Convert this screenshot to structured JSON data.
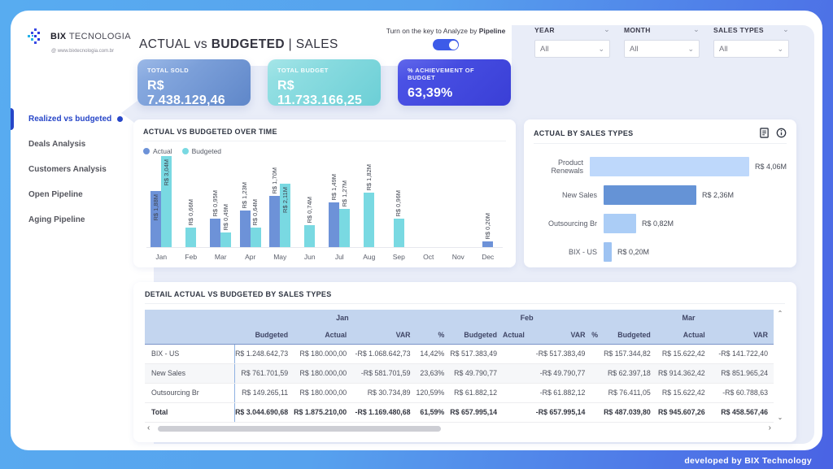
{
  "logo": {
    "brand_bold": "BIX",
    "brand_rest": "TECNOLOGIA",
    "url": "@ www.bixtecnologia.com.br"
  },
  "sidebar": {
    "items": [
      {
        "label": "Realized vs budgeted",
        "active": true
      },
      {
        "label": "Deals Analysis",
        "active": false
      },
      {
        "label": "Customers Analysis",
        "active": false
      },
      {
        "label": "Open Pipeline",
        "active": false
      },
      {
        "label": "Aging Pipeline",
        "active": false
      }
    ]
  },
  "header": {
    "title_a": "ACTUAL",
    "title_vs": "vs",
    "title_b": "BUDGETED",
    "title_sep": "|",
    "title_c": "SALES",
    "toggle_text_prefix": "Turn on the key to Analyze by ",
    "toggle_text_bold": "Pipeline",
    "toggle_on": true
  },
  "filters": [
    {
      "label": "YEAR",
      "value": "All"
    },
    {
      "label": "MONTH",
      "value": "All"
    },
    {
      "label": "SALES TYPES",
      "value": "All"
    }
  ],
  "kpis": [
    {
      "label": "TOTAL SOLD",
      "value": "R$ 7.438.129,46",
      "gradient": [
        "#8fb0e4",
        "#5f87c9"
      ]
    },
    {
      "label": "TOTAL BUDGET",
      "value": "R$ 11.733.166,25",
      "gradient": [
        "#9ae2e5",
        "#6ccfd6"
      ]
    },
    {
      "label": "% ACHIEVEMENT OF BUDGET",
      "value": "63,39%",
      "gradient": [
        "#4d55e8",
        "#3a3fd6"
      ]
    }
  ],
  "chart_data": [
    {
      "type": "bar",
      "title": "ACTUAL VS BUDGETED OVER TIME",
      "categories": [
        "Jan",
        "Feb",
        "Mar",
        "Apr",
        "May",
        "Jun",
        "Jul",
        "Aug",
        "Sep",
        "Oct",
        "Nov",
        "Dec"
      ],
      "ymax": 3.04,
      "unit": "R$ millions",
      "legend_position": "top-left",
      "series": [
        {
          "name": "Actual",
          "color": "#6d92d8",
          "values": [
            1.88,
            null,
            0.95,
            1.23,
            1.7,
            null,
            1.49,
            null,
            null,
            null,
            null,
            0.2
          ],
          "labels": [
            "R$ 1,88M",
            "",
            "R$ 0,95M",
            "R$ 1,23M",
            "R$ 1,70M",
            "",
            "R$ 1,49M",
            "",
            "",
            "",
            "",
            "R$ 0,20M"
          ],
          "label_inside": [
            true,
            false,
            false,
            false,
            false,
            false,
            false,
            false,
            false,
            false,
            false,
            false
          ]
        },
        {
          "name": "Budgeted",
          "color": "#79d9e2",
          "values": [
            3.04,
            0.66,
            0.49,
            0.64,
            2.11,
            0.74,
            1.27,
            1.82,
            0.96,
            null,
            null,
            null
          ],
          "labels": [
            "R$ 3,04M",
            "R$ 0,66M",
            "R$ 0,49M",
            "R$ 0,64M",
            "R$ 2,11M",
            "R$ 0,74M",
            "R$ 1,27M",
            "R$ 1,82M",
            "R$ 0,96M",
            "",
            "",
            ""
          ],
          "label_inside": [
            true,
            false,
            false,
            false,
            true,
            false,
            false,
            false,
            false,
            false,
            false,
            false
          ]
        }
      ]
    },
    {
      "type": "bar-horizontal",
      "title": "ACTUAL BY SALES TYPES",
      "categories": [
        "Product Renewals",
        "New Sales",
        "Outsourcing Br",
        "BIX - US"
      ],
      "values": [
        4.06,
        2.36,
        0.82,
        0.2
      ],
      "labels": [
        "R$ 4,06M",
        "R$ 2,36M",
        "R$ 0,82M",
        "R$ 0,20M"
      ],
      "colors": [
        "#bed8fb",
        "#6593d6",
        "#abcdf6",
        "#9ec3f2"
      ],
      "xmax": 4.06
    }
  ],
  "table": {
    "title": "DETAIL ACTUAL VS BUDGETED BY SALES TYPES",
    "months": [
      {
        "name": "Jan",
        "cols": [
          "Budgeted",
          "Actual",
          "VAR",
          "%"
        ]
      },
      {
        "name": "Feb",
        "cols": [
          "Budgeted",
          "Actual",
          "VAR",
          "%"
        ]
      },
      {
        "name": "Mar",
        "cols": [
          "Budgeted",
          "Actual",
          "VAR"
        ]
      }
    ],
    "rows": [
      {
        "label": "BIX - US",
        "total": false,
        "cells": [
          "R$ 1.248.642,73",
          "R$ 180.000,00",
          "-R$ 1.068.642,73",
          "14,42%",
          "R$ 517.383,49",
          "",
          "-R$ 517.383,49",
          "",
          "R$ 157.344,82",
          "R$ 15.622,42",
          "-R$ 141.722,40"
        ]
      },
      {
        "label": "New Sales",
        "total": false,
        "cells": [
          "R$ 761.701,59",
          "R$ 180.000,00",
          "-R$ 581.701,59",
          "23,63%",
          "R$ 49.790,77",
          "",
          "-R$ 49.790,77",
          "",
          "R$ 62.397,18",
          "R$ 914.362,42",
          "R$ 851.965,24"
        ]
      },
      {
        "label": "Outsourcing Br",
        "total": false,
        "cells": [
          "R$ 149.265,11",
          "R$ 180.000,00",
          "R$ 30.734,89",
          "120,59%",
          "R$ 61.882,12",
          "",
          "-R$ 61.882,12",
          "",
          "R$ 76.411,05",
          "R$ 15.622,42",
          "-R$ 60.788,63"
        ]
      },
      {
        "label": "Total",
        "total": true,
        "cells": [
          "R$ 3.044.690,68",
          "R$ 1.875.210,00",
          "-R$ 1.169.480,68",
          "61,59%",
          "R$ 657.995,14",
          "",
          "-R$ 657.995,14",
          "",
          "R$ 487.039,80",
          "R$ 945.607,26",
          "R$ 458.567,46"
        ]
      }
    ]
  },
  "footer": {
    "credit": "developed by BIX Technology"
  }
}
